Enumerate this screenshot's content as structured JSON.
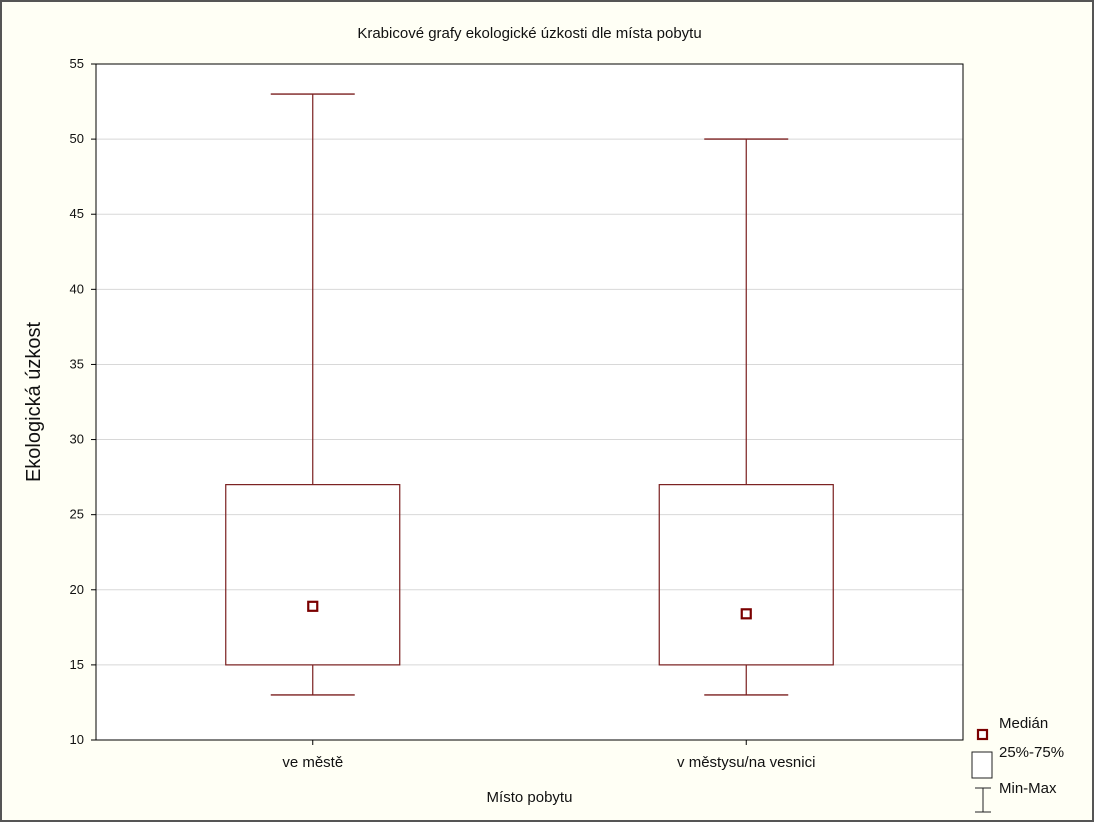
{
  "chart_data": {
    "type": "boxplot",
    "title": "Krabicové grafy ekologické úzkosti dle místa pobytu",
    "xlabel": "Místo pobytu",
    "ylabel": "Ekologická úzkost",
    "ylim": [
      10,
      55
    ],
    "yticks": [
      "10",
      "15",
      "20",
      "25",
      "30",
      "35",
      "40",
      "45",
      "50",
      "55"
    ],
    "grid": "horizontal",
    "legend_position": "bottom-right",
    "categories": [
      "ve městě",
      "v městysu/na vesnici"
    ],
    "boxes": [
      {
        "category": "ve městě",
        "min": 13,
        "q1": 15,
        "median": 18.9,
        "q3": 27,
        "max": 53
      },
      {
        "category": "v městysu/na vesnici",
        "min": 13,
        "q1": 15,
        "median": 18.4,
        "q3": 27,
        "max": 50
      }
    ],
    "legend": [
      {
        "symbol": "median",
        "label": "Medián"
      },
      {
        "symbol": "box",
        "label": "25%-75%"
      },
      {
        "symbol": "whisker",
        "label": "Min-Max"
      }
    ],
    "colors": {
      "box": "#7a1f1f",
      "median_border": "#7a0000",
      "grid": "#d8d8d8",
      "axis": "#000000",
      "frame": "#555555",
      "background": "#fffff5",
      "plot_background": "#ffffff"
    }
  }
}
